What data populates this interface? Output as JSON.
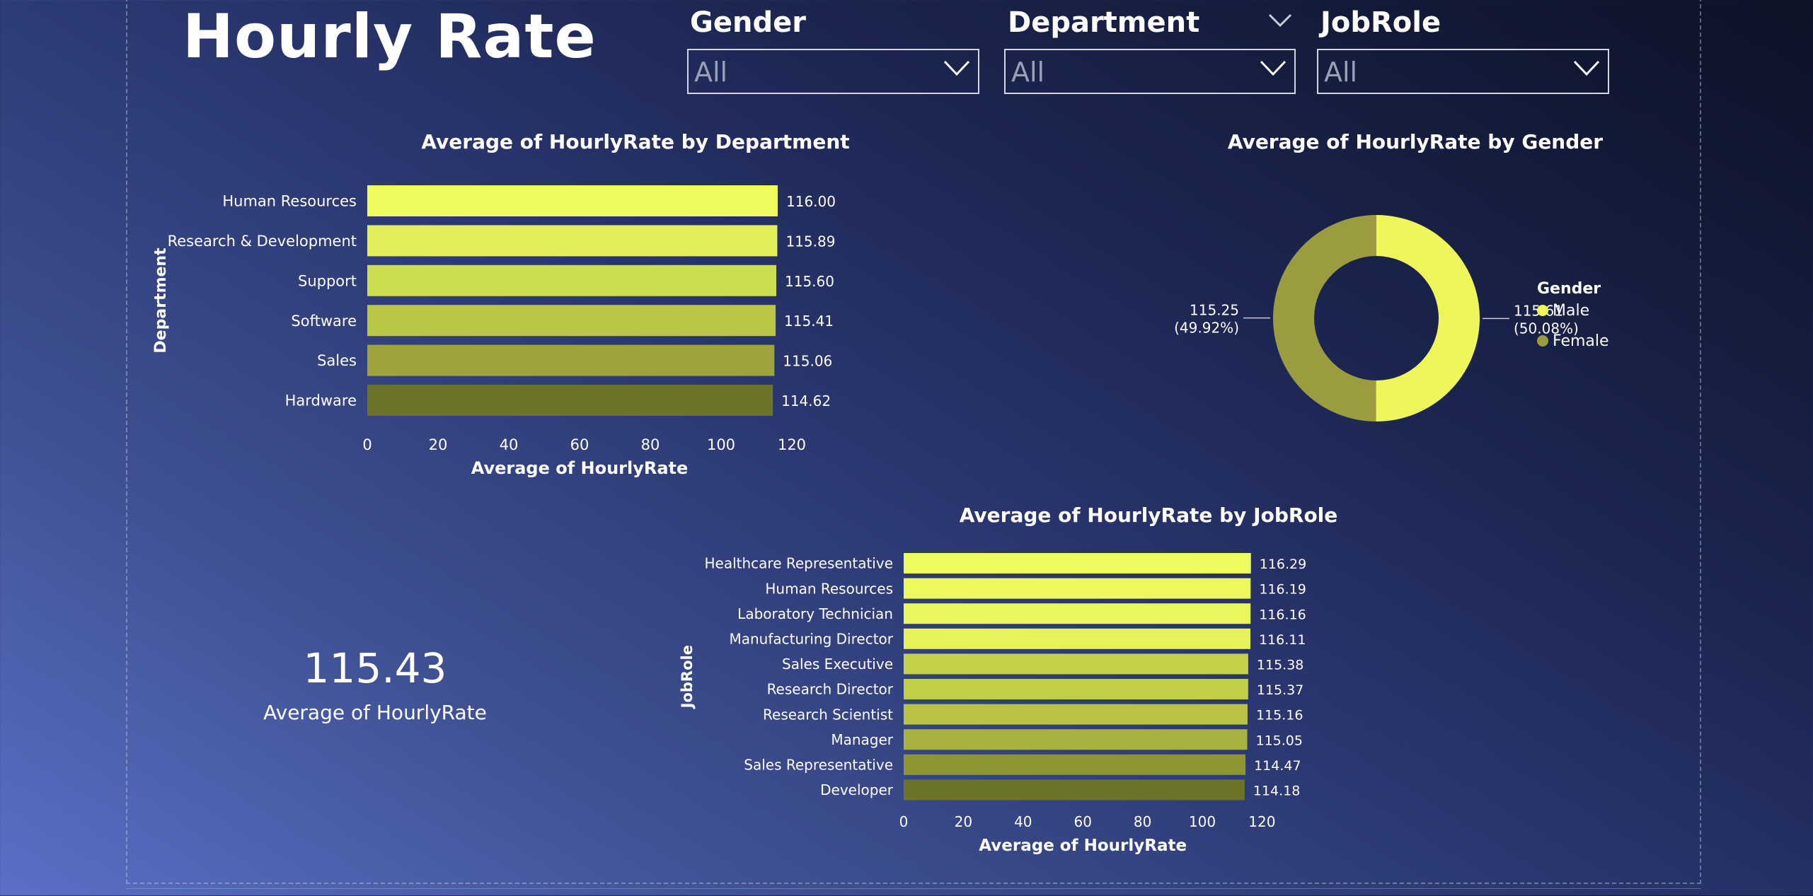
{
  "report": {
    "title": "Hourly Rate"
  },
  "slicers": [
    {
      "label": "Gender",
      "value": "All"
    },
    {
      "label": "Department",
      "value": "All"
    },
    {
      "label": "JobRole",
      "value": "All"
    }
  ],
  "kpi": {
    "value": "115.43",
    "label": "Average of HourlyRate"
  },
  "colors": {
    "bright": "#eefb5e",
    "mid": "#c2cd48",
    "dark": "#6d7428",
    "female": "#9b9c40",
    "male": "#eef65a"
  },
  "chart_data": [
    {
      "type": "bar",
      "orientation": "horizontal",
      "title": "Average of HourlyRate by Department",
      "xlabel": "Average of HourlyRate",
      "ylabel": "Department",
      "xlim": [
        0,
        120
      ],
      "xticks": [
        0,
        20,
        40,
        60,
        80,
        100,
        120
      ],
      "categories": [
        "Human Resources",
        "Research & Development",
        "Support",
        "Software",
        "Sales",
        "Hardware"
      ],
      "values": [
        116.0,
        115.89,
        115.6,
        115.41,
        115.06,
        114.62
      ],
      "value_labels": [
        "116.00",
        "115.89",
        "115.60",
        "115.41",
        "115.06",
        "114.62"
      ],
      "colors": [
        "#eefb5e",
        "#e2ef58",
        "#ccdc50",
        "#bac545",
        "#9ea43b",
        "#6d7428"
      ]
    },
    {
      "type": "pie",
      "style": "donut",
      "title": "Average of HourlyRate by Gender",
      "legend_title": "Gender",
      "legend_position": "right",
      "slices": [
        {
          "name": "Male",
          "value": 115.61,
          "value_label": "115.61",
          "percent_label": "(50.08%)",
          "color": "#eef65a"
        },
        {
          "name": "Female",
          "value": 115.25,
          "value_label": "115.25",
          "percent_label": "(49.92%)",
          "color": "#9b9c40"
        }
      ]
    },
    {
      "type": "bar",
      "orientation": "horizontal",
      "title": "Average of HourlyRate by JobRole",
      "xlabel": "Average of HourlyRate",
      "ylabel": "JobRole",
      "xlim": [
        0,
        120
      ],
      "xticks": [
        0,
        20,
        40,
        60,
        80,
        100,
        120
      ],
      "categories": [
        "Healthcare Representative",
        "Human Resources",
        "Laboratory Technician",
        "Manufacturing Director",
        "Sales Executive",
        "Research Director",
        "Research Scientist",
        "Manager",
        "Sales Representative",
        "Developer"
      ],
      "values": [
        116.29,
        116.19,
        116.16,
        116.11,
        115.38,
        115.37,
        115.16,
        115.05,
        114.47,
        114.18
      ],
      "value_labels": [
        "116.29",
        "116.19",
        "116.16",
        "116.11",
        "115.38",
        "115.37",
        "115.16",
        "115.05",
        "114.47",
        "114.18"
      ],
      "colors": [
        "#eefb5e",
        "#ecf85c",
        "#eaf65b",
        "#e6f25a",
        "#c6d14a",
        "#c2cd48",
        "#b9c244",
        "#aab23f",
        "#8f9533",
        "#6d7428"
      ]
    }
  ]
}
